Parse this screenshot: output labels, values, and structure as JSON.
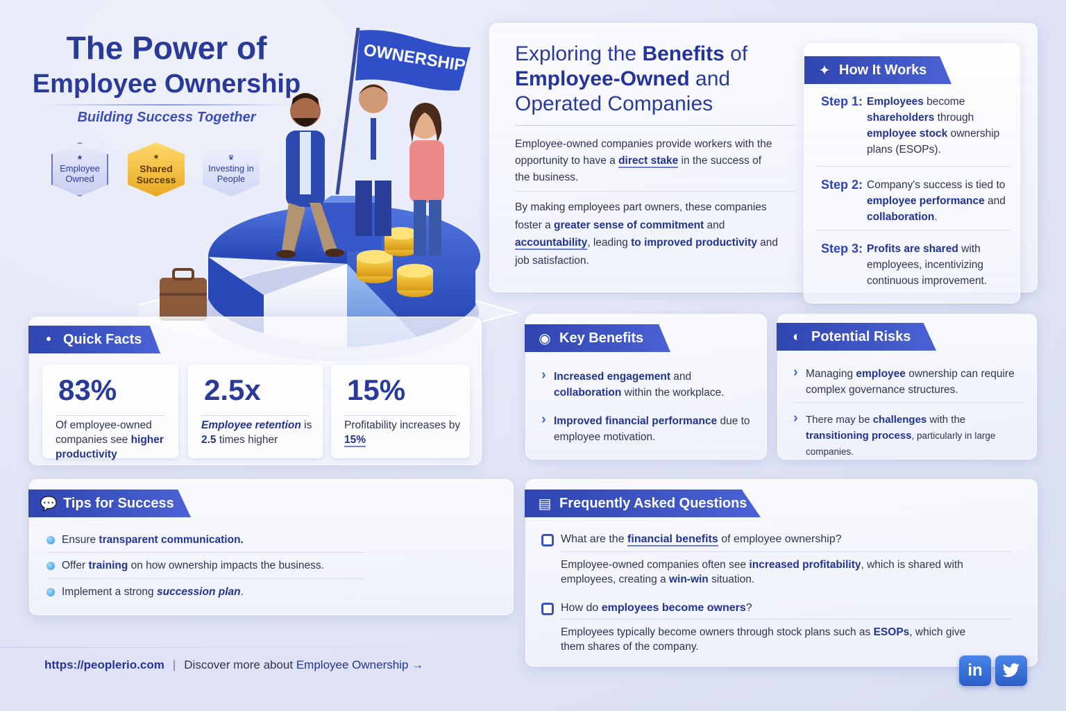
{
  "hero": {
    "title_line1": "The Power of",
    "title_line2": "Employee Ownership",
    "subtitle": "Building Success Together",
    "badges": [
      "Employee Owned",
      "Shared Success",
      "Investing in People"
    ],
    "flag_text": "OWNERSHIP"
  },
  "intro": {
    "heading_pre": "Exploring the ",
    "heading_b1": "Benefits",
    "heading_mid": " of ",
    "heading_b2": "Employee-Owned",
    "heading_post": " and Operated Companies",
    "p1_a": "Employee-owned companies provide workers with the opportunity to have a ",
    "p1_b": "direct stake",
    "p1_c": " in the success of the business.",
    "p2_a": "By making employees part owners, these companies foster a ",
    "p2_b": "greater sense of commitment",
    "p2_c": " and ",
    "p2_d": "accountability",
    "p2_e": ", leading ",
    "p2_f": "to improved productivity",
    "p2_g": " and job satisfaction."
  },
  "how": {
    "title": "How It Works",
    "steps": [
      {
        "label": "Step 1:",
        "a": "Employees",
        "b": " become ",
        "c": "shareholders",
        "d": " through ",
        "e": "employee stock",
        "f": " ownership plans (ESOPs)."
      },
      {
        "label": "Step 2:",
        "a": "Company's success is tied to ",
        "b": "employee performance",
        "c": " and ",
        "d": "collaboration",
        "e": "."
      },
      {
        "label": "Step 3:",
        "a": "Profits are shared",
        "b": " with employees, incentivizing continuous improvement."
      }
    ]
  },
  "quick_facts": {
    "title": "Quick Facts",
    "facts": [
      {
        "value": "83%",
        "desc_a": "Of employee-owned companies see ",
        "desc_b": "higher productivity"
      },
      {
        "value": "2.5x",
        "desc_a": "Employee retention",
        "desc_b": " is ",
        "desc_c": "2.5",
        "desc_d": " times higher"
      },
      {
        "value": "15%",
        "desc_a": "Profitability increases by ",
        "desc_b": "15%"
      }
    ]
  },
  "key_benefits": {
    "title": "Key Benefits",
    "items": [
      {
        "a": "Increased engagement",
        "b": " and ",
        "c": "collaboration",
        "d": " within the workplace."
      },
      {
        "a": "Improved financial performance",
        "b": " due to employee motivation."
      }
    ]
  },
  "risks": {
    "title": "Potential Risks",
    "items": [
      {
        "a": "Managing ",
        "b": "employee",
        "c": " ownership can require complex governance structures."
      },
      {
        "a": "There may be ",
        "b": "challenges",
        "c": " with the ",
        "d": "transitioning process",
        "e": ", particularly in large companies."
      }
    ]
  },
  "tips": {
    "title": "Tips for Success",
    "items": [
      {
        "a": "Ensure ",
        "b": "transparent communication."
      },
      {
        "a": "Offer ",
        "b": "training",
        "c": " on how ownership impacts the business."
      },
      {
        "a": "Implement a strong ",
        "b": "succession plan",
        "c": "."
      }
    ]
  },
  "faq": {
    "title": "Frequently Asked Questions",
    "items": [
      {
        "q_a": "What are the ",
        "q_b": "financial benefits",
        "q_c": " of employee ownership?",
        "a_a": "Employee-owned companies often see ",
        "a_b": "increased profitability",
        "a_c": ", which is shared with employees, creating a ",
        "a_d": "win-win",
        "a_e": " situation."
      },
      {
        "q_a": "How do ",
        "q_b": "employees become owners",
        "q_c": "?",
        "a_a": "Employees typically become owners through stock plans such as ",
        "a_b": "ESOPs",
        "a_c": ", which give them shares of the company.",
        "a_d": "",
        "a_e": ""
      }
    ]
  },
  "footer": {
    "url": "https://peoplerio.com",
    "sep": "|",
    "text": "Discover more about ",
    "link": "Employee Ownership →"
  },
  "social": {
    "linkedin": "in",
    "twitter_icon": "twitter-bird-icon"
  },
  "colors": {
    "primary": "#2a3a9a",
    "accent": "#4a62d4",
    "gold": "#e8a923"
  }
}
